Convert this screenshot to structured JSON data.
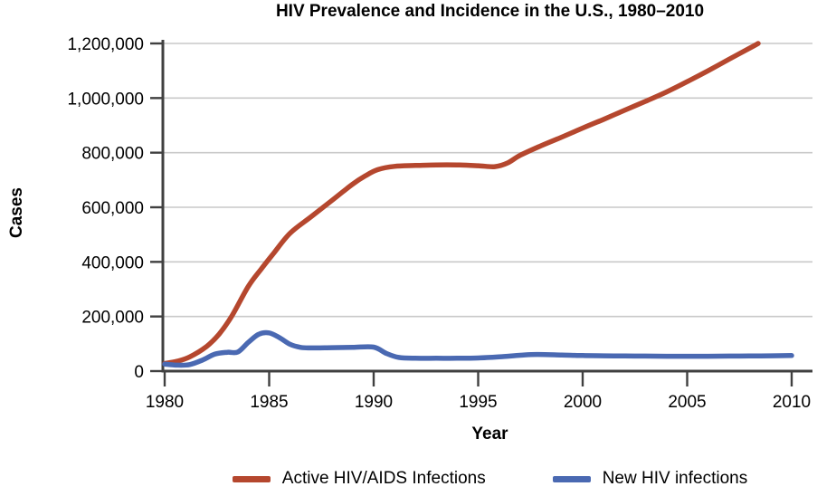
{
  "title": "HIV Prevalence and Incidence in the U.S., 1980–2010",
  "colors": {
    "prevalence_line": "#b5472e",
    "incidence_line": "#4a69b2",
    "axis": "#404040",
    "grid": "#c9c9c9",
    "text": "#000000",
    "background": "#ffffff"
  },
  "legend": {
    "items": [
      {
        "label": "Active HIV/AIDS Infections",
        "color": "#b5472e"
      },
      {
        "label": "New HIV infections",
        "color": "#4a69b2"
      }
    ]
  },
  "chart_data": {
    "type": "line",
    "title": "HIV Prevalence and Incidence in the U.S., 1980–2010",
    "xlabel": "Year",
    "ylabel": "Cases",
    "xlim": [
      1980,
      2010
    ],
    "ylim": [
      0,
      1200000
    ],
    "x_ticks": [
      1980,
      1985,
      1990,
      1995,
      2000,
      2005,
      2010
    ],
    "x_tick_labels": [
      "1980",
      "1985",
      "1990",
      "1995",
      "2000",
      "2005",
      "2010"
    ],
    "y_ticks": [
      0,
      200000,
      400000,
      600000,
      800000,
      1000000,
      1200000
    ],
    "y_tick_labels": [
      "0",
      "200,000",
      "400,000",
      "600,000",
      "800,000",
      "1,000,000",
      "1,200,000"
    ],
    "grid": "horizontal-only",
    "legend_position": "bottom",
    "series": [
      {
        "name": "Active HIV/AIDS Infections",
        "color": "#b5472e",
        "points": [
          [
            1980,
            28000
          ],
          [
            1980.6,
            36000
          ],
          [
            1981.2,
            52000
          ],
          [
            1982,
            90000
          ],
          [
            1982.6,
            135000
          ],
          [
            1983.2,
            200000
          ],
          [
            1984,
            310000
          ],
          [
            1984.6,
            372000
          ],
          [
            1985.2,
            430000
          ],
          [
            1986,
            505000
          ],
          [
            1987,
            565000
          ],
          [
            1988,
            625000
          ],
          [
            1989,
            685000
          ],
          [
            1989.6,
            715000
          ],
          [
            1990.2,
            738000
          ],
          [
            1991,
            750000
          ],
          [
            1992,
            753000
          ],
          [
            1993,
            755000
          ],
          [
            1994,
            755000
          ],
          [
            1995,
            752000
          ],
          [
            1995.8,
            749000
          ],
          [
            1996.4,
            762000
          ],
          [
            1997,
            790000
          ],
          [
            1998,
            825000
          ],
          [
            1999,
            857000
          ],
          [
            2000,
            890000
          ],
          [
            2001,
            922000
          ],
          [
            2002,
            955000
          ],
          [
            2003,
            988000
          ],
          [
            2004,
            1022000
          ],
          [
            2005,
            1060000
          ],
          [
            2006,
            1100000
          ],
          [
            2007,
            1142000
          ],
          [
            2008,
            1183000
          ],
          [
            2008.4,
            1200000
          ]
        ]
      },
      {
        "name": "New HIV infections",
        "color": "#4a69b2",
        "points": [
          [
            1980,
            26000
          ],
          [
            1980.6,
            22000
          ],
          [
            1981.2,
            24000
          ],
          [
            1981.8,
            40000
          ],
          [
            1982.4,
            62000
          ],
          [
            1983,
            69000
          ],
          [
            1983.5,
            70000
          ],
          [
            1984,
            105000
          ],
          [
            1984.5,
            135000
          ],
          [
            1985,
            140000
          ],
          [
            1985.5,
            122000
          ],
          [
            1986,
            98000
          ],
          [
            1986.5,
            87000
          ],
          [
            1987,
            85000
          ],
          [
            1988,
            86000
          ],
          [
            1989,
            87000
          ],
          [
            1990,
            88000
          ],
          [
            1990.6,
            65000
          ],
          [
            1991.2,
            50000
          ],
          [
            1992,
            47000
          ],
          [
            1993,
            47000
          ],
          [
            1994,
            47000
          ],
          [
            1995,
            48000
          ],
          [
            1996,
            52000
          ],
          [
            1997,
            58000
          ],
          [
            1997.8,
            61000
          ],
          [
            1999,
            59000
          ],
          [
            2000,
            57000
          ],
          [
            2001,
            56000
          ],
          [
            2002,
            55500
          ],
          [
            2003,
            55000
          ],
          [
            2004,
            54500
          ],
          [
            2005,
            54500
          ],
          [
            2006,
            54500
          ],
          [
            2007,
            55000
          ],
          [
            2008,
            55500
          ],
          [
            2009,
            56000
          ],
          [
            2010,
            57000
          ]
        ]
      }
    ]
  }
}
